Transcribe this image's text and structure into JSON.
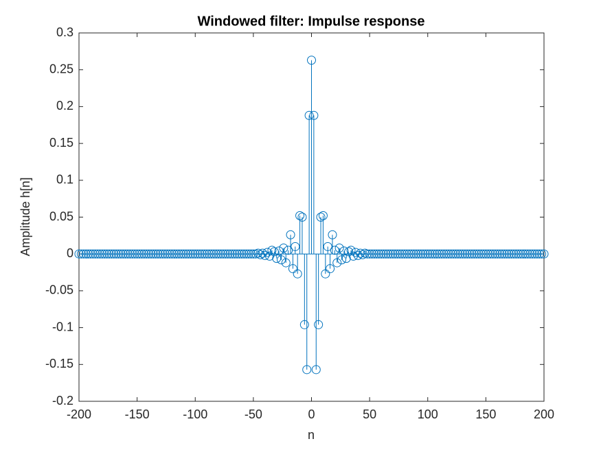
{
  "chart_data": {
    "type": "stem",
    "title": "Windowed filter: Impulse response",
    "x_label": "n",
    "y_label": "Amplitude h[n]",
    "color": "#0072bd",
    "x": [
      -200,
      -198,
      -196,
      -194,
      -192,
      -190,
      -188,
      -186,
      -184,
      -182,
      -180,
      -178,
      -176,
      -174,
      -172,
      -170,
      -168,
      -166,
      -164,
      -162,
      -160,
      -158,
      -156,
      -154,
      -152,
      -150,
      -148,
      -146,
      -144,
      -142,
      -140,
      -138,
      -136,
      -134,
      -132,
      -130,
      -128,
      -126,
      -124,
      -122,
      -120,
      -118,
      -116,
      -114,
      -112,
      -110,
      -108,
      -106,
      -104,
      -102,
      -100,
      -98,
      -96,
      -94,
      -92,
      -90,
      -88,
      -86,
      -84,
      -82,
      -80,
      -78,
      -76,
      -74,
      -72,
      -70,
      -68,
      -66,
      -64,
      -62,
      -60,
      -58,
      -56,
      -54,
      -52,
      -50,
      -48,
      -46,
      -44,
      -42,
      -40,
      -38,
      -36,
      -34,
      -32,
      -30,
      -28,
      -26,
      -24,
      -22,
      -20,
      -18,
      -16,
      -14,
      -12,
      -10,
      -8,
      -6,
      -4,
      -2,
      0,
      2,
      4,
      6,
      8,
      10,
      12,
      14,
      16,
      18,
      20,
      22,
      24,
      26,
      28,
      30,
      32,
      34,
      36,
      38,
      40,
      42,
      44,
      46,
      48,
      50,
      52,
      54,
      56,
      58,
      60,
      62,
      64,
      66,
      68,
      70,
      72,
      74,
      76,
      78,
      80,
      82,
      84,
      86,
      88,
      90,
      92,
      94,
      96,
      98,
      100,
      102,
      104,
      106,
      108,
      110,
      112,
      114,
      116,
      118,
      120,
      122,
      124,
      126,
      128,
      130,
      132,
      134,
      136,
      138,
      140,
      142,
      144,
      146,
      148,
      150,
      152,
      154,
      156,
      158,
      160,
      162,
      164,
      166,
      168,
      170,
      172,
      174,
      176,
      178,
      180,
      182,
      184,
      186,
      188,
      190,
      192,
      194,
      196,
      198,
      200
    ],
    "values": [
      0,
      0,
      0,
      0,
      0,
      0,
      0,
      0,
      0,
      0,
      0,
      0,
      0,
      0,
      0,
      0,
      0,
      0,
      0,
      0,
      0,
      0,
      0,
      0,
      0,
      0,
      0,
      0,
      0,
      0,
      0,
      0,
      0,
      0,
      0,
      0,
      0,
      0,
      0,
      0,
      0,
      0,
      0,
      0,
      0,
      0,
      0,
      0,
      0,
      0,
      0,
      0,
      0,
      0,
      0,
      0,
      0,
      0,
      0,
      0,
      0,
      0,
      0,
      0,
      0,
      0,
      0,
      0,
      0,
      0,
      0,
      0,
      0,
      0,
      0,
      0,
      0,
      0.001,
      -0.001,
      0.001,
      -0.002,
      0.002,
      -0.003,
      0.005,
      0.003,
      -0.006,
      0.004,
      -0.008,
      0.008,
      -0.012,
      0.005,
      0.026,
      -0.02,
      0.01,
      -0.027,
      0.052,
      0.05,
      -0.096,
      -0.157,
      0.188,
      0.263,
      0.188,
      -0.157,
      -0.096,
      0.05,
      0.052,
      -0.027,
      0.01,
      -0.02,
      0.026,
      0.005,
      -0.012,
      0.008,
      -0.008,
      0.004,
      -0.006,
      0.003,
      0.005,
      -0.003,
      0.002,
      -0.002,
      0.001,
      -0.001,
      0.001,
      0,
      0,
      0,
      0,
      0,
      0,
      0,
      0,
      0,
      0,
      0,
      0,
      0,
      0,
      0,
      0,
      0,
      0,
      0,
      0,
      0,
      0,
      0,
      0,
      0,
      0,
      0,
      0,
      0,
      0,
      0,
      0,
      0,
      0,
      0,
      0,
      0,
      0,
      0,
      0,
      0,
      0,
      0,
      0,
      0,
      0,
      0,
      0,
      0,
      0,
      0,
      0,
      0,
      0,
      0,
      0,
      0,
      0,
      0,
      0,
      0,
      0,
      0,
      0,
      0,
      0,
      0,
      0,
      0,
      0,
      0,
      0,
      0,
      0,
      0,
      0,
      0
    ],
    "xlim": [
      -200,
      200
    ],
    "ylim": [
      -0.2,
      0.3
    ],
    "xticks": [
      -200,
      -150,
      -100,
      -50,
      0,
      50,
      100,
      150,
      200
    ],
    "yticks": [
      -0.2,
      -0.15,
      -0.1,
      -0.05,
      0,
      0.05,
      0.1,
      0.15,
      0.2,
      0.25,
      0.3
    ],
    "grid": false
  }
}
